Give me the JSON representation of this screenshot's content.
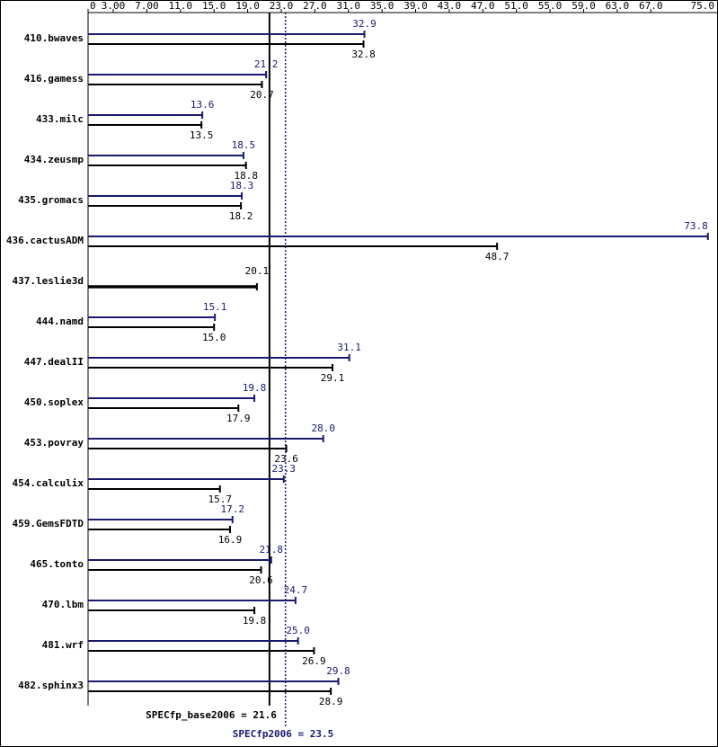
{
  "chart_data": {
    "type": "bar",
    "orientation": "horizontal",
    "categories": [
      "410.bwaves",
      "416.gamess",
      "433.milc",
      "434.zeusmp",
      "435.gromacs",
      "436.cactusADM",
      "437.leslie3d",
      "444.namd",
      "447.dealII",
      "450.soplex",
      "453.povray",
      "454.calculix",
      "459.GemsFDTD",
      "465.tonto",
      "470.lbm",
      "481.wrf",
      "482.sphinx3"
    ],
    "series": [
      {
        "color": "#191970",
        "values": [
          32.9,
          21.2,
          13.6,
          18.5,
          18.3,
          73.8,
          null,
          15.1,
          31.1,
          19.8,
          28.0,
          23.3,
          17.2,
          21.8,
          24.7,
          25.0,
          29.8
        ],
        "value_labels": [
          "32.9",
          "21.2",
          "13.6",
          "18.5",
          "18.3",
          "73.8",
          null,
          "15.1",
          "31.1",
          "19.8",
          "28.0",
          "23.3",
          "17.2",
          "21.8",
          "24.7",
          "25.0",
          "29.8"
        ]
      },
      {
        "color": "#000000",
        "values": [
          32.8,
          20.7,
          13.5,
          18.8,
          18.2,
          48.7,
          20.1,
          15.0,
          29.1,
          17.9,
          23.6,
          15.7,
          16.9,
          20.6,
          19.8,
          26.9,
          28.9
        ],
        "value_labels": [
          "32.8",
          "20.7",
          "13.5",
          "18.8",
          "18.2",
          "48.7",
          "20.1",
          "15.0",
          "29.1",
          "17.9",
          "23.6",
          "15.7",
          "16.9",
          "20.6",
          "19.8",
          "26.9",
          "28.9"
        ]
      }
    ],
    "xlim": [
      0,
      75
    ],
    "xticks": [
      0,
      {
        "value": 3,
        "label": "3.00"
      },
      {
        "value": 7,
        "label": "7.00"
      },
      {
        "value": 11,
        "label": "11.0"
      },
      {
        "value": 15,
        "label": "15.0"
      },
      {
        "value": 19,
        "label": "19.0"
      },
      {
        "value": 23,
        "label": "23.0"
      },
      {
        "value": 27,
        "label": "27.0"
      },
      {
        "value": 31,
        "label": "31.0"
      },
      {
        "value": 35,
        "label": "35.0"
      },
      {
        "value": 39,
        "label": "39.0"
      },
      {
        "value": 43,
        "label": "43.0"
      },
      {
        "value": 47,
        "label": "47.0"
      },
      {
        "value": 51,
        "label": "51.0"
      },
      {
        "value": 55,
        "label": "55.0"
      },
      {
        "value": 59,
        "label": "59.0"
      },
      {
        "value": 63,
        "label": "63.0"
      },
      {
        "value": 67,
        "label": "67.0"
      },
      {
        "value": 75,
        "label": "75.0"
      }
    ],
    "reference_lines": [
      {
        "label": "SPECfp_base2006 = 21.6",
        "value": 21.6,
        "color": "#000000",
        "dashed": false
      },
      {
        "label": "SPECfp2006 = 23.5",
        "value": 23.5,
        "color": "#191970",
        "dashed": true
      }
    ]
  }
}
